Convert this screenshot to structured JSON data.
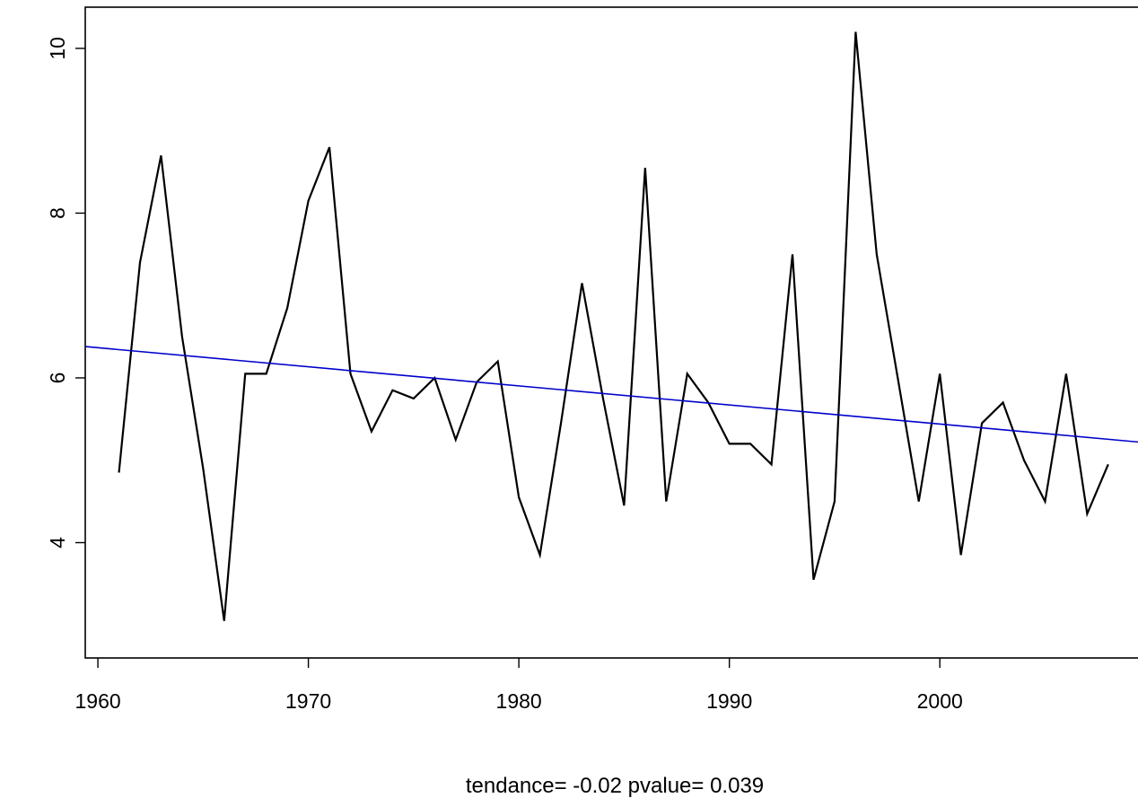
{
  "chart_data": {
    "type": "line",
    "title": "",
    "xlabel": "tendance= -0.02 pvalue= 0.039",
    "ylabel": "",
    "xlim": [
      1959.4,
      2009.5
    ],
    "ylim": [
      2.6,
      10.5
    ],
    "x_ticks": [
      "1960",
      "1970",
      "1980",
      "1990",
      "2000"
    ],
    "y_ticks": [
      "4",
      "6",
      "8",
      "10"
    ],
    "grid": false,
    "legend": "none",
    "series": [
      {
        "color": "#000000",
        "x": [
          1961,
          1962,
          1963,
          1964,
          1965,
          1966,
          1967,
          1968,
          1969,
          1970,
          1971,
          1972,
          1973,
          1974,
          1975,
          1976,
          1977,
          1978,
          1979,
          1980,
          1981,
          1982,
          1983,
          1984,
          1985,
          1986,
          1987,
          1988,
          1989,
          1990,
          1991,
          1992,
          1993,
          1994,
          1995,
          1996,
          1997,
          1998,
          1999,
          2000,
          2001,
          2002,
          2003,
          2004,
          2005,
          2006,
          2007,
          2008
        ],
        "values": [
          4.85,
          7.4,
          8.7,
          6.5,
          4.9,
          3.05,
          6.05,
          6.05,
          6.85,
          8.15,
          8.8,
          6.05,
          5.35,
          5.85,
          5.75,
          6.0,
          5.25,
          5.95,
          6.2,
          4.55,
          3.85,
          5.45,
          7.15,
          5.75,
          4.45,
          8.55,
          4.5,
          6.05,
          5.7,
          5.2,
          5.2,
          4.95,
          7.5,
          3.55,
          4.5,
          10.2,
          7.5,
          6.0,
          4.5,
          6.05,
          3.85,
          5.45,
          5.7,
          5.0,
          4.5,
          6.05,
          4.35,
          4.95
        ]
      },
      {
        "color": "#0000cc",
        "x": [
          1959.4,
          2009.5
        ],
        "values": [
          6.38,
          5.22
        ]
      }
    ]
  }
}
